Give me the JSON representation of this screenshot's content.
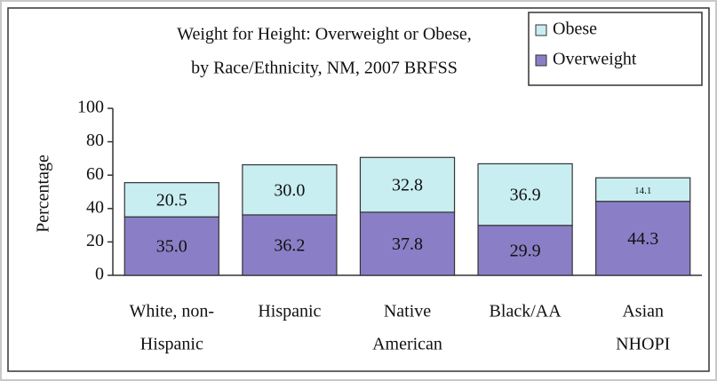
{
  "chart_data": {
    "type": "stacked-bar",
    "title": [
      "Weight for Height:  Overweight or Obese,",
      "by Race/Ethnicity, NM, 2007 BRFSS"
    ],
    "y_label": "Percentage",
    "categories": [
      [
        "White, non-",
        "Hispanic"
      ],
      [
        "Hispanic"
      ],
      [
        "Native",
        "American"
      ],
      [
        "Black/AA"
      ],
      [
        "Asian",
        "NHOPI"
      ]
    ],
    "series": [
      {
        "name": "Overweight",
        "color": "#8a7fc6",
        "values": [
          35.0,
          36.2,
          37.8,
          29.9,
          44.3
        ],
        "value_labels": [
          "35.0",
          "36.2",
          "37.8",
          "29.9",
          "44.3"
        ]
      },
      {
        "name": "Obese",
        "color": "#c8eef2",
        "values": [
          20.5,
          30.0,
          32.8,
          36.9,
          14.1
        ],
        "value_labels": [
          "20.5",
          "30.0",
          "32.8",
          "36.9",
          "14.1"
        ]
      }
    ],
    "ylim": [
      0,
      100
    ],
    "yticks": [
      0,
      20,
      40,
      60,
      80,
      100
    ],
    "grid": false,
    "legend": "top-right"
  }
}
